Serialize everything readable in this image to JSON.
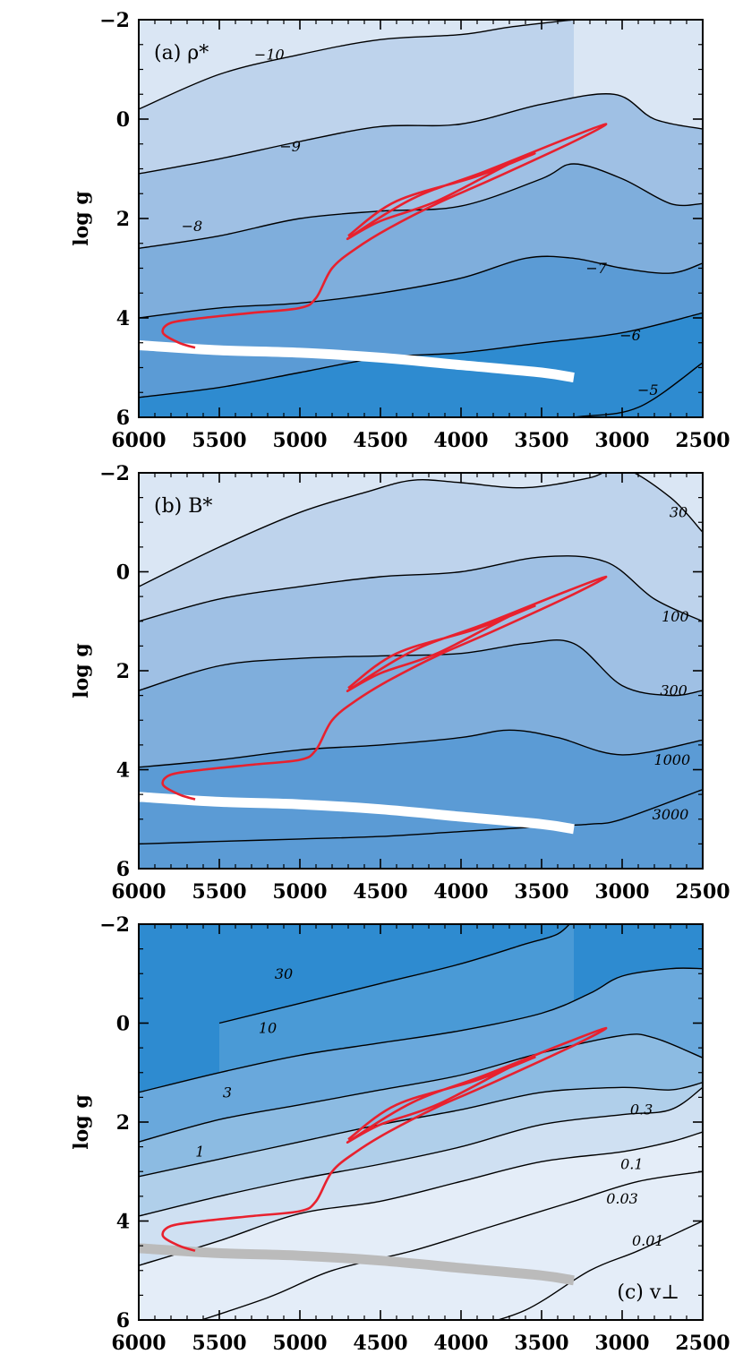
{
  "chart_data": [
    {
      "type": "contour",
      "panel_label": "(a) ρ*",
      "label_position": "top-left",
      "xlabel": "",
      "ylabel": "log g",
      "xlim": [
        6000,
        2500
      ],
      "ylim": [
        6,
        -2
      ],
      "x_ticks": [
        "6000",
        "5500",
        "5000",
        "4500",
        "4000",
        "3500",
        "3000",
        "2500"
      ],
      "y_ticks": [
        "−2",
        "0",
        "2",
        "4",
        "6"
      ],
      "fill_colors": [
        "#dae6f4",
        "#bed3ec",
        "#9fc0e4",
        "#7faedc",
        "#5b9bd5",
        "#2e8bd0"
      ],
      "contours": [
        {
          "level": "−10",
          "points": [
            [
              6000,
              -0.2
            ],
            [
              5500,
              -0.9
            ],
            [
              5000,
              -1.3
            ],
            [
              4500,
              -1.6
            ],
            [
              4000,
              -1.7
            ],
            [
              3700,
              -1.85
            ],
            [
              3300,
              -2.0
            ]
          ]
        },
        {
          "level": "−9",
          "points": [
            [
              6000,
              1.1
            ],
            [
              5500,
              0.8
            ],
            [
              5000,
              0.45
            ],
            [
              4500,
              0.15
            ],
            [
              4000,
              0.1
            ],
            [
              3500,
              -0.3
            ],
            [
              3050,
              -0.5
            ],
            [
              2800,
              0.0
            ],
            [
              2500,
              0.2
            ]
          ]
        },
        {
          "level": "−8",
          "points": [
            [
              6000,
              2.6
            ],
            [
              5500,
              2.35
            ],
            [
              5000,
              2.0
            ],
            [
              4500,
              1.85
            ],
            [
              4000,
              1.75
            ],
            [
              3500,
              1.2
            ],
            [
              3300,
              0.9
            ],
            [
              3000,
              1.2
            ],
            [
              2700,
              1.7
            ],
            [
              2500,
              1.7
            ]
          ]
        },
        {
          "level": "−7",
          "points": [
            [
              6000,
              4.0
            ],
            [
              5500,
              3.8
            ],
            [
              5000,
              3.7
            ],
            [
              4500,
              3.5
            ],
            [
              4000,
              3.2
            ],
            [
              3600,
              2.8
            ],
            [
              3300,
              2.8
            ],
            [
              3000,
              3.0
            ],
            [
              2700,
              3.1
            ],
            [
              2500,
              2.9
            ]
          ]
        },
        {
          "level": "−6",
          "points": [
            [
              6000,
              5.6
            ],
            [
              5500,
              5.4
            ],
            [
              5000,
              5.1
            ],
            [
              4500,
              4.8
            ],
            [
              4000,
              4.7
            ],
            [
              3500,
              4.5
            ],
            [
              3000,
              4.3
            ],
            [
              2500,
              3.9
            ]
          ]
        },
        {
          "level": "−5",
          "points": [
            [
              3800,
              6.2
            ],
            [
              3300,
              6.0
            ],
            [
              2900,
              5.8
            ],
            [
              2500,
              4.9
            ]
          ]
        }
      ],
      "contour_labels": [
        {
          "text": "−10",
          "x": 5190,
          "y": -1.2
        },
        {
          "text": "−9",
          "x": 5060,
          "y": 0.65
        },
        {
          "text": "−8",
          "x": 5670,
          "y": 2.25
        },
        {
          "text": "−7",
          "x": 3160,
          "y": 3.1
        },
        {
          "text": "−6",
          "x": 2950,
          "y": 4.45
        },
        {
          "text": "−5",
          "x": 2840,
          "y": 5.55
        }
      ]
    },
    {
      "type": "contour",
      "panel_label": "(b) B*",
      "label_position": "top-left",
      "xlabel": "",
      "ylabel": "log g",
      "xlim": [
        6000,
        2500
      ],
      "ylim": [
        6,
        -2
      ],
      "x_ticks": [
        "6000",
        "5500",
        "5000",
        "4500",
        "4000",
        "3500",
        "3000",
        "2500"
      ],
      "y_ticks": [
        "−2",
        "0",
        "2",
        "4",
        "6"
      ],
      "fill_colors": [
        "#dae6f4",
        "#bed3ec",
        "#9fc0e4",
        "#7faedc",
        "#5b9bd5"
      ],
      "contours": [
        {
          "level": "30",
          "points": [
            [
              6000,
              0.3
            ],
            [
              5500,
              -0.5
            ],
            [
              5000,
              -1.2
            ],
            [
              4600,
              -1.6
            ],
            [
              4300,
              -1.85
            ],
            [
              4000,
              -1.8
            ],
            [
              3600,
              -1.7
            ],
            [
              3200,
              -1.9
            ],
            [
              3000,
              -2.1
            ],
            [
              2700,
              -1.5
            ],
            [
              2500,
              -0.8
            ]
          ]
        },
        {
          "level": "100",
          "points": [
            [
              6000,
              1.0
            ],
            [
              5500,
              0.55
            ],
            [
              5000,
              0.3
            ],
            [
              4500,
              0.1
            ],
            [
              4000,
              0.0
            ],
            [
              3500,
              -0.3
            ],
            [
              3100,
              -0.2
            ],
            [
              2800,
              0.55
            ],
            [
              2500,
              1.0
            ]
          ]
        },
        {
          "level": "300",
          "points": [
            [
              6000,
              2.4
            ],
            [
              5500,
              1.9
            ],
            [
              5000,
              1.75
            ],
            [
              4500,
              1.7
            ],
            [
              4000,
              1.65
            ],
            [
              3600,
              1.45
            ],
            [
              3300,
              1.45
            ],
            [
              3000,
              2.3
            ],
            [
              2700,
              2.5
            ],
            [
              2500,
              2.4
            ]
          ]
        },
        {
          "level": "1000",
          "points": [
            [
              6000,
              3.95
            ],
            [
              5500,
              3.8
            ],
            [
              5000,
              3.6
            ],
            [
              4500,
              3.5
            ],
            [
              4000,
              3.35
            ],
            [
              3700,
              3.2
            ],
            [
              3400,
              3.35
            ],
            [
              3000,
              3.7
            ],
            [
              2500,
              3.4
            ]
          ]
        },
        {
          "level": "3000",
          "points": [
            [
              6000,
              5.5
            ],
            [
              5500,
              5.45
            ],
            [
              5000,
              5.4
            ],
            [
              4500,
              5.35
            ],
            [
              4000,
              5.25
            ],
            [
              3500,
              5.15
            ],
            [
              3200,
              5.1
            ],
            [
              3000,
              5.0
            ],
            [
              2500,
              4.4
            ]
          ]
        }
      ],
      "contour_labels": [
        {
          "text": "30",
          "x": 2650,
          "y": -1.1
        },
        {
          "text": "100",
          "x": 2670,
          "y": 1.0
        },
        {
          "text": "300",
          "x": 2680,
          "y": 2.5
        },
        {
          "text": "1000",
          "x": 2690,
          "y": 3.9
        },
        {
          "text": "3000",
          "x": 2700,
          "y": 5.0
        }
      ]
    },
    {
      "type": "contour",
      "panel_label": "(c) v⊥",
      "label_position": "bottom-right",
      "xlabel": "",
      "ylabel": "log g",
      "xlim": [
        6000,
        2500
      ],
      "ylim": [
        6,
        -2
      ],
      "x_ticks": [
        "6000",
        "5500",
        "5000",
        "4500",
        "4000",
        "3500",
        "3000",
        "2500"
      ],
      "y_ticks": [
        "−2",
        "0",
        "2",
        "4",
        "6"
      ],
      "fill_colors": [
        "#2e8bd0",
        "#4a9ad6",
        "#69a8dc",
        "#8cbbe2",
        "#b0cfea",
        "#cfe0f2",
        "#e4edf8"
      ],
      "contours": [
        {
          "level": "30",
          "points": [
            [
              5500,
              0.0
            ],
            [
              5000,
              -0.4
            ],
            [
              4500,
              -0.8
            ],
            [
              4000,
              -1.2
            ],
            [
              3600,
              -1.6
            ],
            [
              3400,
              -1.8
            ],
            [
              3300,
              -2.1
            ]
          ]
        },
        {
          "level": "10",
          "points": [
            [
              6000,
              1.4
            ],
            [
              5500,
              1.0
            ],
            [
              5000,
              0.65
            ],
            [
              4500,
              0.4
            ],
            [
              4000,
              0.15
            ],
            [
              3500,
              -0.2
            ],
            [
              3200,
              -0.6
            ],
            [
              3000,
              -0.95
            ],
            [
              2700,
              -1.1
            ],
            [
              2500,
              -1.1
            ]
          ]
        },
        {
          "level": "3",
          "points": [
            [
              6000,
              2.4
            ],
            [
              5500,
              1.95
            ],
            [
              5000,
              1.65
            ],
            [
              4500,
              1.35
            ],
            [
              4000,
              1.05
            ],
            [
              3500,
              0.6
            ],
            [
              3000,
              0.25
            ],
            [
              2800,
              0.3
            ],
            [
              2500,
              0.7
            ]
          ]
        },
        {
          "level": "1",
          "points": [
            [
              6000,
              3.1
            ],
            [
              5500,
              2.75
            ],
            [
              5000,
              2.4
            ],
            [
              4500,
              2.05
            ],
            [
              4000,
              1.75
            ],
            [
              3500,
              1.4
            ],
            [
              3000,
              1.3
            ],
            [
              2700,
              1.35
            ],
            [
              2500,
              1.2
            ]
          ]
        },
        {
          "level": "0.3",
          "points": [
            [
              6000,
              3.9
            ],
            [
              5500,
              3.5
            ],
            [
              5000,
              3.15
            ],
            [
              4500,
              2.85
            ],
            [
              4000,
              2.5
            ],
            [
              3500,
              2.05
            ],
            [
              3000,
              1.85
            ],
            [
              2700,
              1.75
            ],
            [
              2500,
              1.3
            ]
          ]
        },
        {
          "level": "0.1",
          "points": [
            [
              6000,
              4.9
            ],
            [
              5500,
              4.4
            ],
            [
              5000,
              3.85
            ],
            [
              4500,
              3.6
            ],
            [
              4000,
              3.2
            ],
            [
              3500,
              2.8
            ],
            [
              3000,
              2.6
            ],
            [
              2700,
              2.4
            ],
            [
              2500,
              2.2
            ]
          ]
        },
        {
          "level": "0.03",
          "points": [
            [
              5800,
              6.2
            ],
            [
              5200,
              5.55
            ],
            [
              4800,
              5.0
            ],
            [
              4300,
              4.6
            ],
            [
              3800,
              4.1
            ],
            [
              3300,
              3.6
            ],
            [
              2900,
              3.2
            ],
            [
              2500,
              3.0
            ]
          ]
        },
        {
          "level": "0.01",
          "points": [
            [
              4000,
              6.2
            ],
            [
              3600,
              5.8
            ],
            [
              3200,
              5.0
            ],
            [
              2900,
              4.6
            ],
            [
              2500,
              4.0
            ]
          ]
        }
      ],
      "contour_labels": [
        {
          "text": "30",
          "x": 5100,
          "y": -0.9
        },
        {
          "text": "10",
          "x": 5200,
          "y": 0.2
        },
        {
          "text": "3",
          "x": 5450,
          "y": 1.5
        },
        {
          "text": "1",
          "x": 5620,
          "y": 2.7
        },
        {
          "text": "0.3",
          "x": 2880,
          "y": 1.85
        },
        {
          "text": "0.1",
          "x": 2940,
          "y": 2.95
        },
        {
          "text": "0.03",
          "x": 3000,
          "y": 3.65
        },
        {
          "text": "0.01",
          "x": 2840,
          "y": 4.5
        }
      ]
    }
  ],
  "track": {
    "color": "#e8212e",
    "points": [
      [
        5650,
        4.6
      ],
      [
        5750,
        4.5
      ],
      [
        5850,
        4.3
      ],
      [
        5800,
        4.1
      ],
      [
        5600,
        4.0
      ],
      [
        5300,
        3.9
      ],
      [
        5000,
        3.8
      ],
      [
        4900,
        3.6
      ],
      [
        4800,
        3.0
      ],
      [
        4650,
        2.6
      ],
      [
        4450,
        2.2
      ],
      [
        4150,
        1.7
      ],
      [
        3800,
        1.2
      ],
      [
        3300,
        0.45
      ],
      [
        3100,
        0.1
      ],
      [
        3350,
        0.4
      ],
      [
        3850,
        1.05
      ],
      [
        4300,
        1.6
      ],
      [
        4700,
        2.4
      ],
      [
        4500,
        2.05
      ],
      [
        4150,
        1.65
      ],
      [
        3700,
        0.9
      ],
      [
        3550,
        0.7
      ],
      [
        3900,
        1.15
      ],
      [
        4400,
        1.65
      ],
      [
        4700,
        2.35
      ]
    ]
  },
  "band": {
    "color_ab": "#ffffff",
    "color_c": "#bbbbbb",
    "points": [
      [
        6000,
        4.55
      ],
      [
        5500,
        4.65
      ],
      [
        5000,
        4.7
      ],
      [
        4500,
        4.8
      ],
      [
        4000,
        4.95
      ],
      [
        3500,
        5.1
      ],
      [
        3300,
        5.2
      ]
    ]
  }
}
